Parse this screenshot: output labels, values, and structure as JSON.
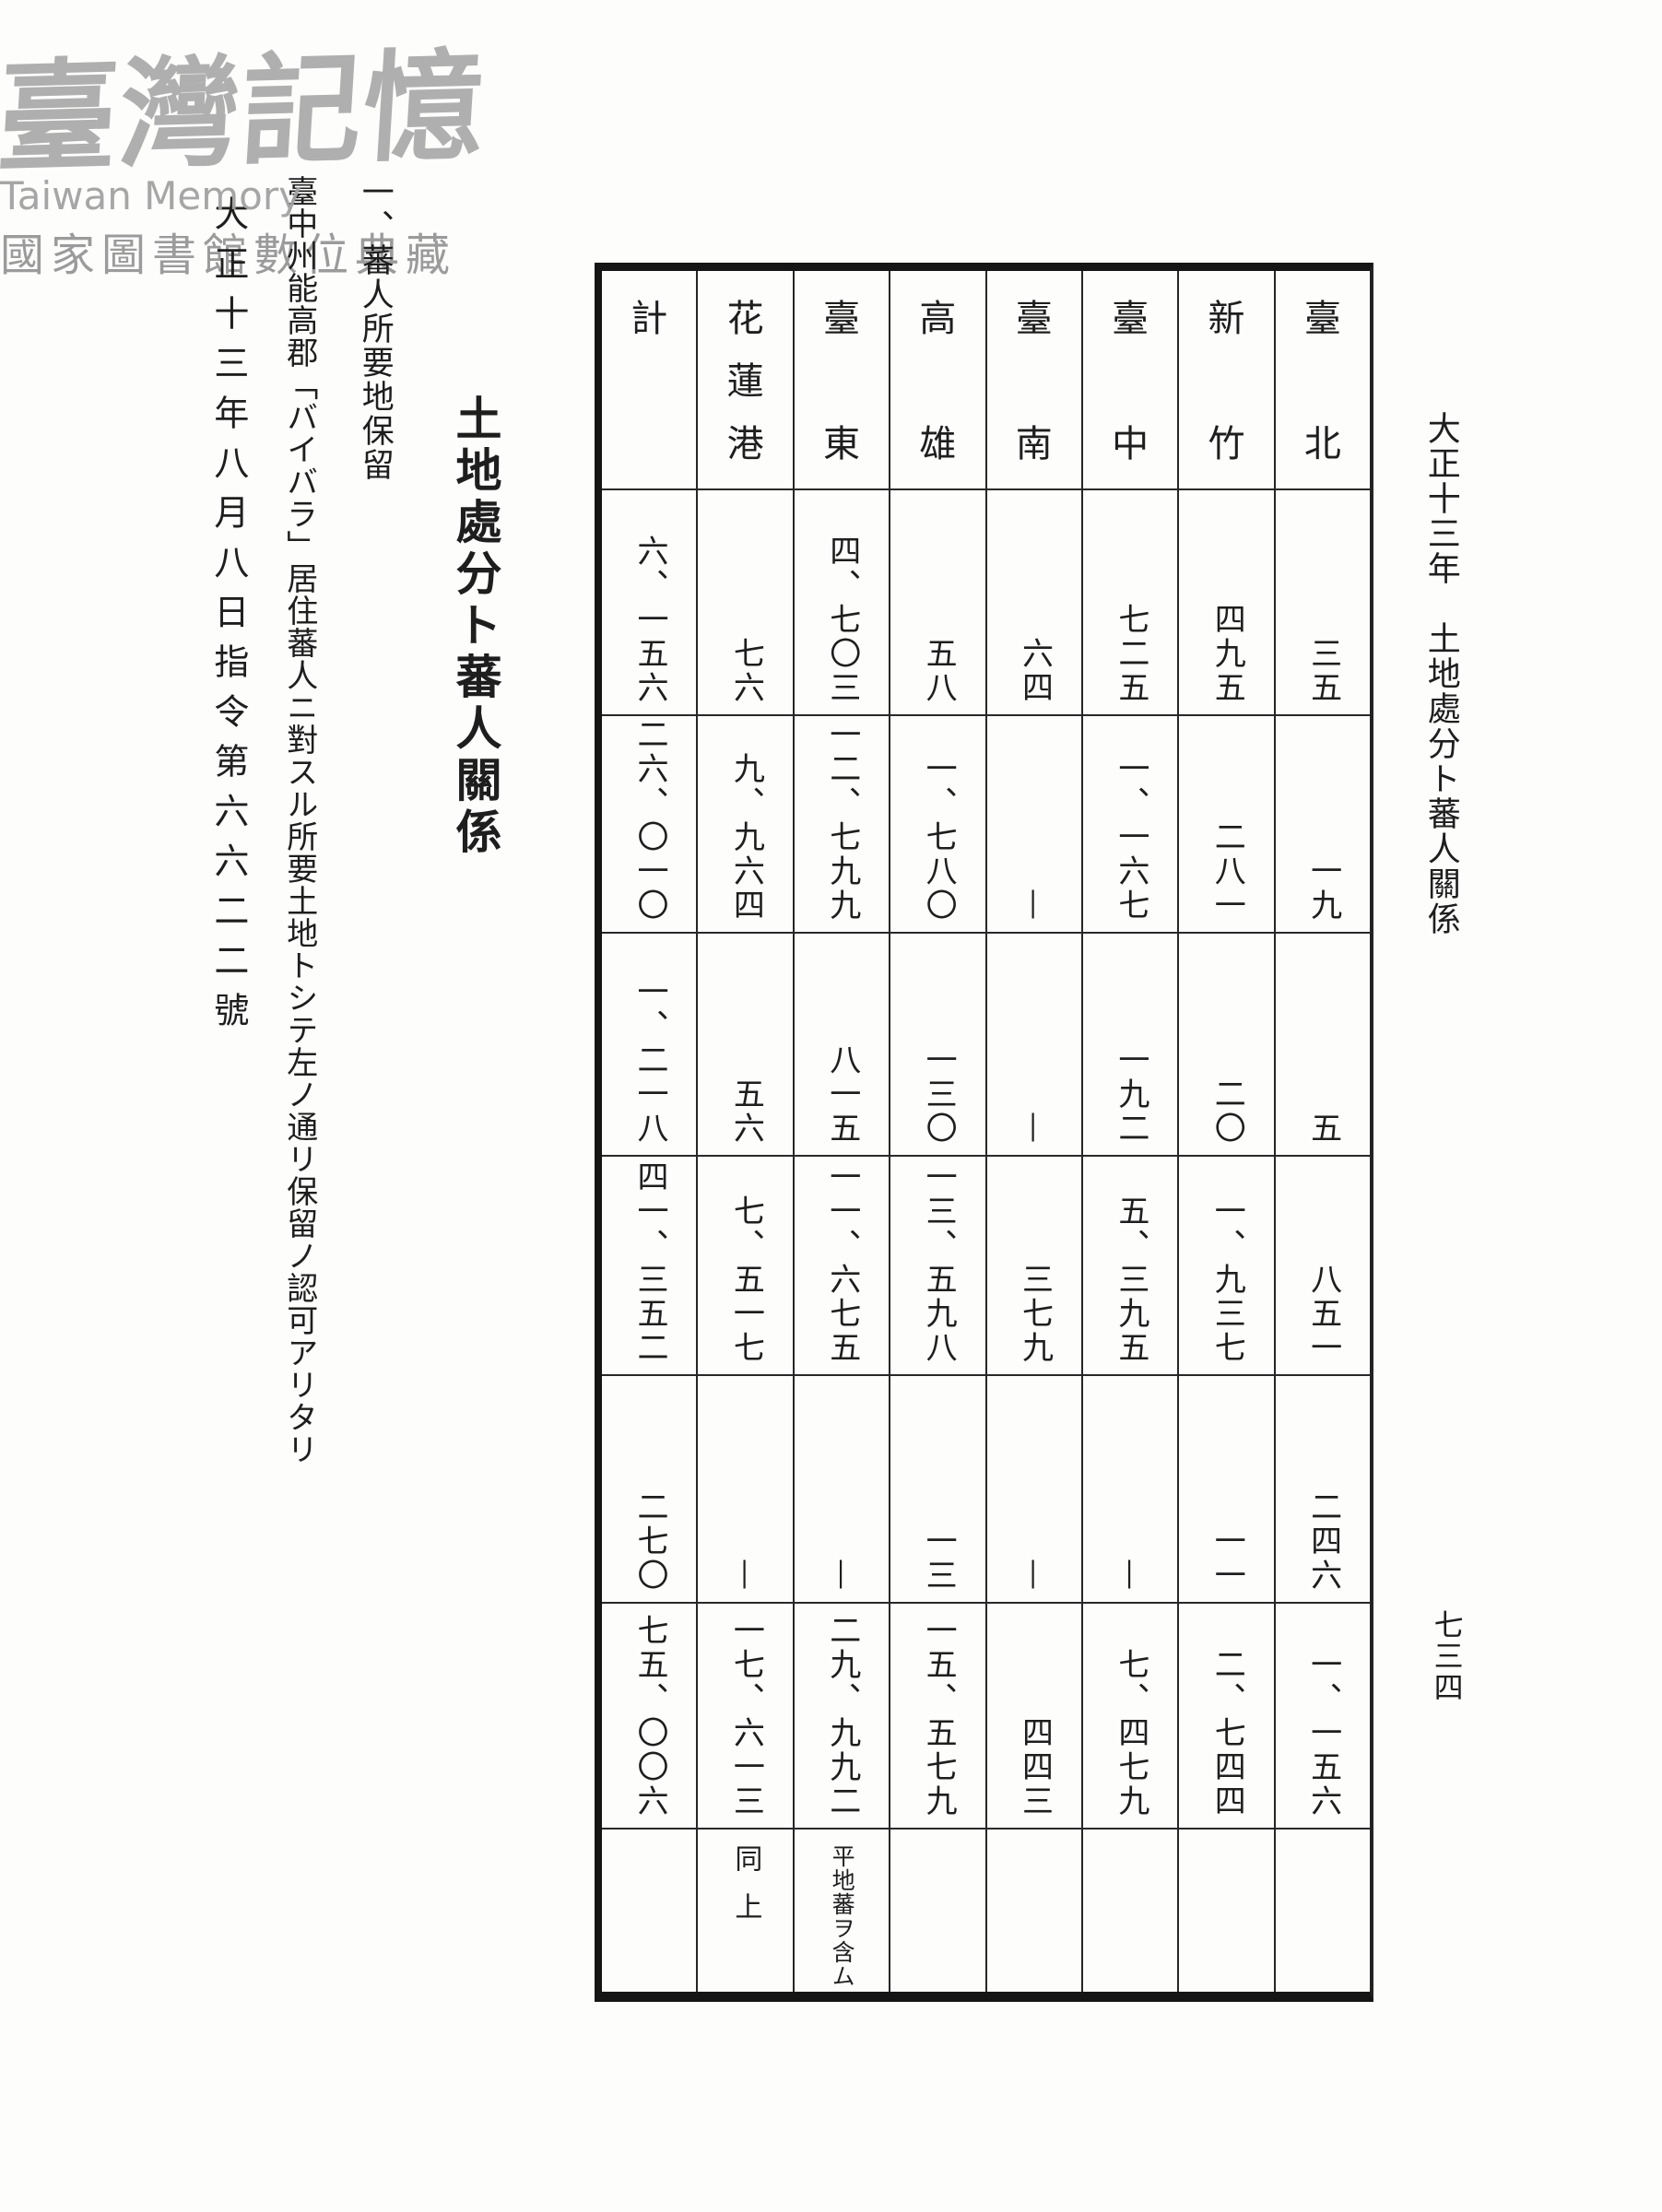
{
  "page": {
    "running_header": "大正十三年　土地處分ト蕃人關係",
    "page_number": "七三四",
    "title": "土地處分ト蕃人關係",
    "section_label": "一、蕃人所要地保留",
    "body_text": "臺中州能高郡「バイバラ」居住蕃人ニ對スル所要土地トシテ左ノ通リ保留ノ認可アリタリ",
    "directive": "大正十三年八月八日指令第六六二二號",
    "footer": "國家圖書館數位典藏"
  },
  "watermark": {
    "text": "臺灣記憶",
    "subtext": "Taiwan Memory",
    "color": "#a2a2a2"
  },
  "table": {
    "orientation": "vertical-columns-right-to-left",
    "rows": [
      {
        "name": "臺北",
        "values": [
          "三五",
          "一九",
          "五",
          "八五一",
          "二四六",
          "一、一五六"
        ],
        "note": ""
      },
      {
        "name": "新竹",
        "values": [
          "四九五",
          "二八一",
          "二〇",
          "一、九三七",
          "一一",
          "二、七四四"
        ],
        "note": ""
      },
      {
        "name": "臺中",
        "values": [
          "七二五",
          "一、一六七",
          "一九二",
          "五、三九五",
          "—",
          "七、四七九"
        ],
        "note": ""
      },
      {
        "name": "臺南",
        "values": [
          "六四",
          "—",
          "—",
          "三七九",
          "—",
          "四四三"
        ],
        "note": ""
      },
      {
        "name": "高雄",
        "values": [
          "五八",
          "一、七八〇",
          "一三〇",
          "一三、五九八",
          "一三",
          "一五、五七九"
        ],
        "note": ""
      },
      {
        "name": "臺東",
        "values": [
          "四、七〇三",
          "一二、七九九",
          "八一五",
          "一一、六七五",
          "—",
          "二九、九九二"
        ],
        "note": "平地蕃ヲ含ム"
      },
      {
        "name": "花蓮港",
        "values": [
          "七六",
          "九、九六四",
          "五六",
          "七、五一七",
          "—",
          "一七、六一三"
        ],
        "note": "同上"
      },
      {
        "name": "計",
        "values": [
          "六、一五六",
          "二六、〇一〇",
          "一、二一八",
          "四一、三五二",
          "二七〇",
          "七五、〇〇六"
        ],
        "note": ""
      }
    ]
  },
  "ink_color": "#1e1e1e",
  "paper_color": "#fdfdfc"
}
